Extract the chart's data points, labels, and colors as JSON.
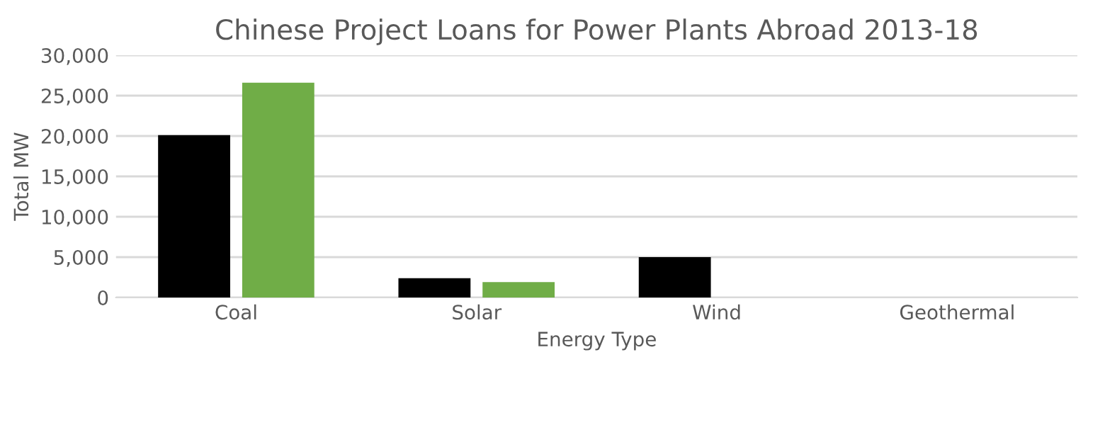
{
  "chart_data": {
    "type": "bar",
    "title": "Chinese Project Loans for Power Plants Abroad 2013-18",
    "xlabel": "Energy Type",
    "ylabel": "Total MW",
    "categories": [
      "Coal",
      "Solar",
      "Wind",
      "Geothermal"
    ],
    "series": [
      {
        "color": "#000000",
        "values": [
          20100,
          2400,
          5000,
          null
        ]
      },
      {
        "color": "#70ad47",
        "values": [
          26600,
          1900,
          null,
          null
        ]
      }
    ],
    "ylim": [
      0,
      30000
    ],
    "yticks": [
      {
        "value": 0,
        "label": "0"
      },
      {
        "value": 5000,
        "label": "5,000"
      },
      {
        "value": 10000,
        "label": "10,000"
      },
      {
        "value": 15000,
        "label": "15,000"
      },
      {
        "value": 20000,
        "label": "20,000"
      },
      {
        "value": 25000,
        "label": "25,000"
      },
      {
        "value": 30000,
        "label": "30,000"
      }
    ],
    "grid": "y"
  }
}
